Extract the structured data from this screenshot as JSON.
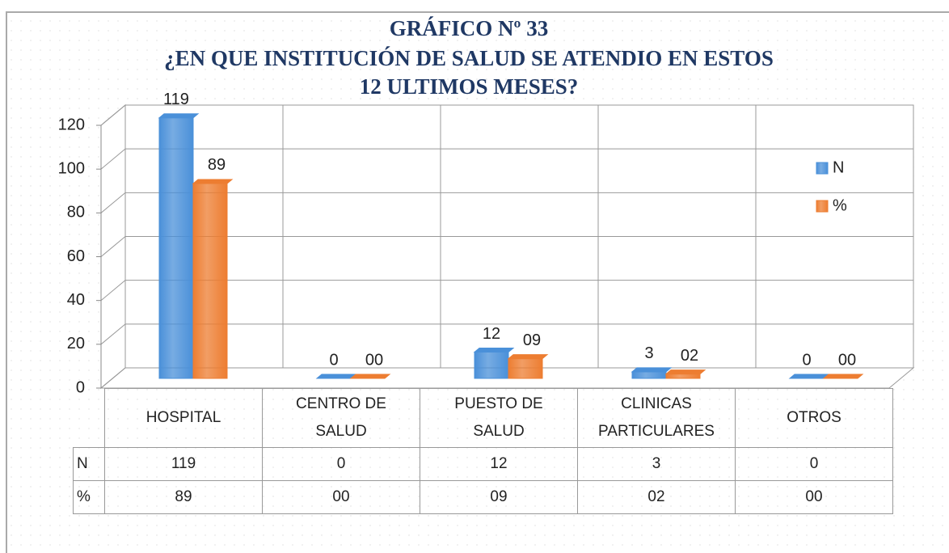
{
  "chart_data": {
    "type": "bar3d",
    "title": [
      "GRÁFICO Nº 33",
      "¿EN QUE INSTITUCIÓN DE SALUD SE ATENDIO EN ESTOS",
      "12 ULTIMOS MESES?"
    ],
    "categories": [
      "HOSPITAL",
      "CENTRO DE SALUD",
      "PUESTO DE SALUD",
      "CLINICAS PARTICULARES",
      "OTROS"
    ],
    "series": [
      {
        "name": "N",
        "color": "#4a90d9",
        "values": [
          119,
          0,
          12,
          3,
          0
        ]
      },
      {
        "name": "%",
        "color": "#ed7d31",
        "values": [
          89,
          0,
          9,
          2,
          0
        ],
        "value_labels": [
          "89",
          "00",
          "09",
          "02",
          "00"
        ]
      }
    ],
    "ylim": [
      0,
      120
    ],
    "yticks": [
      0,
      20,
      40,
      60,
      80,
      100,
      120
    ],
    "grid": true,
    "legend": "right",
    "data_table": true
  }
}
